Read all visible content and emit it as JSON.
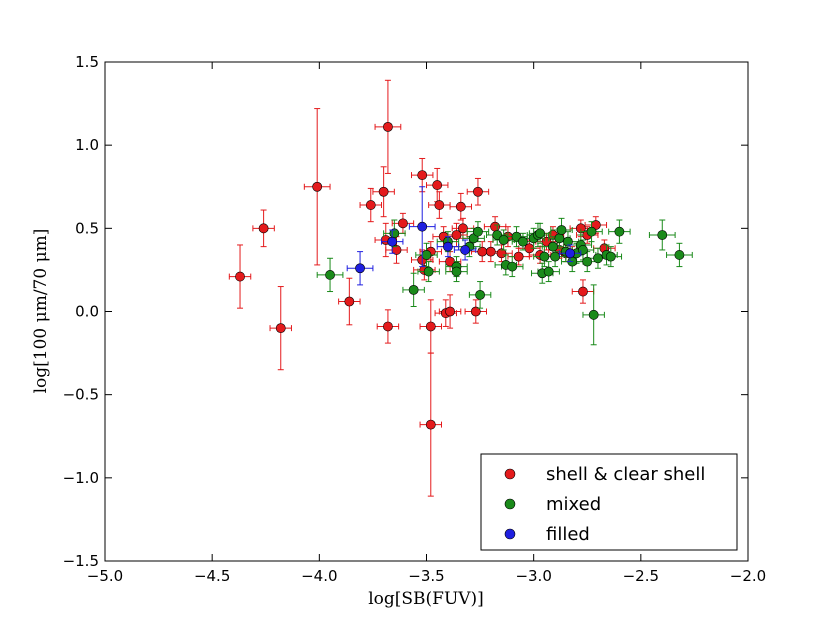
{
  "chart_data": {
    "type": "scatter",
    "title": "",
    "xlabel": "log[SB(FUV)]",
    "ylabel": "log[100 μm/70 μm]",
    "xlim": [
      -5.0,
      -2.0
    ],
    "ylim": [
      -1.5,
      1.5
    ],
    "xticks": [
      -5.0,
      -4.5,
      -4.0,
      -3.5,
      -3.0,
      -2.5,
      -2.0
    ],
    "yticks": [
      -1.5,
      -1.0,
      -0.5,
      0.0,
      0.5,
      1.0,
      1.5
    ],
    "xtick_labels": [
      "−5.0",
      "−4.5",
      "−4.0",
      "−3.5",
      "−3.0",
      "−2.5",
      "−2.0"
    ],
    "ytick_labels": [
      "−1.5",
      "−1.0",
      "−0.5",
      "0.0",
      "0.5",
      "1.0",
      "1.5"
    ],
    "grid": false,
    "legend_position": "bottom-right",
    "series": [
      {
        "name": "shell & clear shell",
        "color": "#e41a1c",
        "points": [
          {
            "x": -4.37,
            "y": 0.21,
            "xerr": 0.05,
            "yerr": 0.19
          },
          {
            "x": -4.26,
            "y": 0.5,
            "xerr": 0.05,
            "yerr": 0.11
          },
          {
            "x": -4.18,
            "y": -0.1,
            "xerr": 0.05,
            "yerr": 0.25
          },
          {
            "x": -4.01,
            "y": 0.75,
            "xerr": 0.06,
            "yerr": 0.47
          },
          {
            "x": -3.86,
            "y": 0.06,
            "xerr": 0.05,
            "yerr": 0.14
          },
          {
            "x": -3.76,
            "y": 0.64,
            "xerr": 0.05,
            "yerr": 0.1
          },
          {
            "x": -3.7,
            "y": 0.72,
            "xerr": 0.05,
            "yerr": 0.15
          },
          {
            "x": -3.68,
            "y": 1.11,
            "xerr": 0.06,
            "yerr": 0.28
          },
          {
            "x": -3.68,
            "y": -0.09,
            "xerr": 0.05,
            "yerr": 0.1
          },
          {
            "x": -3.69,
            "y": 0.43,
            "xerr": 0.05,
            "yerr": 0.1
          },
          {
            "x": -3.64,
            "y": 0.37,
            "xerr": 0.05,
            "yerr": 0.08
          },
          {
            "x": -3.61,
            "y": 0.53,
            "xerr": 0.05,
            "yerr": 0.06
          },
          {
            "x": -3.52,
            "y": 0.82,
            "xerr": 0.05,
            "yerr": 0.1
          },
          {
            "x": -3.52,
            "y": 0.31,
            "xerr": 0.05,
            "yerr": 0.06
          },
          {
            "x": -3.51,
            "y": 0.25,
            "xerr": 0.05,
            "yerr": 0.06
          },
          {
            "x": -3.48,
            "y": 0.36,
            "xerr": 0.05,
            "yerr": 0.06
          },
          {
            "x": -3.48,
            "y": -0.68,
            "xerr": 0.05,
            "yerr": 0.43
          },
          {
            "x": -3.48,
            "y": -0.09,
            "xerr": 0.05,
            "yerr": 0.16
          },
          {
            "x": -3.45,
            "y": 0.76,
            "xerr": 0.05,
            "yerr": 0.1
          },
          {
            "x": -3.44,
            "y": 0.64,
            "xerr": 0.05,
            "yerr": 0.08
          },
          {
            "x": -3.42,
            "y": 0.45,
            "xerr": 0.05,
            "yerr": 0.06
          },
          {
            "x": -3.41,
            "y": -0.01,
            "xerr": 0.05,
            "yerr": 0.08
          },
          {
            "x": -3.39,
            "y": 0.0,
            "xerr": 0.05,
            "yerr": 0.1
          },
          {
            "x": -3.39,
            "y": 0.3,
            "xerr": 0.05,
            "yerr": 0.06
          },
          {
            "x": -3.36,
            "y": 0.46,
            "xerr": 0.05,
            "yerr": 0.07
          },
          {
            "x": -3.34,
            "y": 0.63,
            "xerr": 0.05,
            "yerr": 0.08
          },
          {
            "x": -3.33,
            "y": 0.5,
            "xerr": 0.05,
            "yerr": 0.06
          },
          {
            "x": -3.27,
            "y": 0.0,
            "xerr": 0.05,
            "yerr": 0.07
          },
          {
            "x": -3.26,
            "y": 0.72,
            "xerr": 0.05,
            "yerr": 0.08
          },
          {
            "x": -3.24,
            "y": 0.36,
            "xerr": 0.05,
            "yerr": 0.06
          },
          {
            "x": -3.2,
            "y": 0.36,
            "xerr": 0.05,
            "yerr": 0.06
          },
          {
            "x": -3.18,
            "y": 0.51,
            "xerr": 0.05,
            "yerr": 0.06
          },
          {
            "x": -3.15,
            "y": 0.35,
            "xerr": 0.05,
            "yerr": 0.05
          },
          {
            "x": -3.12,
            "y": 0.45,
            "xerr": 0.05,
            "yerr": 0.06
          },
          {
            "x": -3.07,
            "y": 0.33,
            "xerr": 0.05,
            "yerr": 0.05
          },
          {
            "x": -3.02,
            "y": 0.38,
            "xerr": 0.05,
            "yerr": 0.05
          },
          {
            "x": -2.97,
            "y": 0.34,
            "xerr": 0.05,
            "yerr": 0.05
          },
          {
            "x": -2.94,
            "y": 0.42,
            "xerr": 0.05,
            "yerr": 0.05
          },
          {
            "x": -2.91,
            "y": 0.46,
            "xerr": 0.05,
            "yerr": 0.05
          },
          {
            "x": -2.88,
            "y": 0.37,
            "xerr": 0.05,
            "yerr": 0.05
          },
          {
            "x": -2.85,
            "y": 0.35,
            "xerr": 0.05,
            "yerr": 0.05
          },
          {
            "x": -2.82,
            "y": 0.34,
            "xerr": 0.05,
            "yerr": 0.05
          },
          {
            "x": -2.78,
            "y": 0.5,
            "xerr": 0.05,
            "yerr": 0.05
          },
          {
            "x": -2.77,
            "y": 0.12,
            "xerr": 0.05,
            "yerr": 0.07
          },
          {
            "x": -2.75,
            "y": 0.46,
            "xerr": 0.05,
            "yerr": 0.05
          },
          {
            "x": -2.71,
            "y": 0.52,
            "xerr": 0.05,
            "yerr": 0.05
          },
          {
            "x": -2.67,
            "y": 0.38,
            "xerr": 0.05,
            "yerr": 0.05
          }
        ]
      },
      {
        "name": "mixed",
        "color": "#1a8a1a",
        "points": [
          {
            "x": -3.95,
            "y": 0.22,
            "xerr": 0.06,
            "yerr": 0.1
          },
          {
            "x": -3.65,
            "y": 0.47,
            "xerr": 0.05,
            "yerr": 0.08
          },
          {
            "x": -3.56,
            "y": 0.13,
            "xerr": 0.05,
            "yerr": 0.1
          },
          {
            "x": -3.5,
            "y": 0.34,
            "xerr": 0.05,
            "yerr": 0.07
          },
          {
            "x": -3.49,
            "y": 0.24,
            "xerr": 0.05,
            "yerr": 0.06
          },
          {
            "x": -3.4,
            "y": 0.42,
            "xerr": 0.05,
            "yerr": 0.06
          },
          {
            "x": -3.36,
            "y": 0.27,
            "xerr": 0.05,
            "yerr": 0.06
          },
          {
            "x": -3.36,
            "y": 0.24,
            "xerr": 0.05,
            "yerr": 0.06
          },
          {
            "x": -3.3,
            "y": 0.39,
            "xerr": 0.05,
            "yerr": 0.06
          },
          {
            "x": -3.28,
            "y": 0.44,
            "xerr": 0.05,
            "yerr": 0.06
          },
          {
            "x": -3.26,
            "y": 0.48,
            "xerr": 0.05,
            "yerr": 0.06
          },
          {
            "x": -3.25,
            "y": 0.1,
            "xerr": 0.05,
            "yerr": 0.08
          },
          {
            "x": -3.17,
            "y": 0.46,
            "xerr": 0.05,
            "yerr": 0.06
          },
          {
            "x": -3.14,
            "y": 0.43,
            "xerr": 0.05,
            "yerr": 0.06
          },
          {
            "x": -3.13,
            "y": 0.28,
            "xerr": 0.05,
            "yerr": 0.06
          },
          {
            "x": -3.1,
            "y": 0.27,
            "xerr": 0.05,
            "yerr": 0.06
          },
          {
            "x": -3.08,
            "y": 0.45,
            "xerr": 0.05,
            "yerr": 0.06
          },
          {
            "x": -3.05,
            "y": 0.42,
            "xerr": 0.05,
            "yerr": 0.05
          },
          {
            "x": -3.0,
            "y": 0.44,
            "xerr": 0.05,
            "yerr": 0.06
          },
          {
            "x": -2.98,
            "y": 0.46,
            "xerr": 0.05,
            "yerr": 0.07
          },
          {
            "x": -2.97,
            "y": 0.47,
            "xerr": 0.05,
            "yerr": 0.06
          },
          {
            "x": -2.96,
            "y": 0.23,
            "xerr": 0.05,
            "yerr": 0.06
          },
          {
            "x": -2.95,
            "y": 0.33,
            "xerr": 0.05,
            "yerr": 0.06
          },
          {
            "x": -2.93,
            "y": 0.24,
            "xerr": 0.05,
            "yerr": 0.06
          },
          {
            "x": -2.91,
            "y": 0.39,
            "xerr": 0.05,
            "yerr": 0.06
          },
          {
            "x": -2.9,
            "y": 0.33,
            "xerr": 0.05,
            "yerr": 0.06
          },
          {
            "x": -2.88,
            "y": 0.44,
            "xerr": 0.05,
            "yerr": 0.06
          },
          {
            "x": -2.87,
            "y": 0.49,
            "xerr": 0.05,
            "yerr": 0.07
          },
          {
            "x": -2.85,
            "y": 0.36,
            "xerr": 0.05,
            "yerr": 0.06
          },
          {
            "x": -2.84,
            "y": 0.42,
            "xerr": 0.05,
            "yerr": 0.06
          },
          {
            "x": -2.82,
            "y": 0.3,
            "xerr": 0.05,
            "yerr": 0.06
          },
          {
            "x": -2.8,
            "y": 0.35,
            "xerr": 0.05,
            "yerr": 0.06
          },
          {
            "x": -2.78,
            "y": 0.4,
            "xerr": 0.05,
            "yerr": 0.06
          },
          {
            "x": -2.77,
            "y": 0.37,
            "xerr": 0.05,
            "yerr": 0.06
          },
          {
            "x": -2.75,
            "y": 0.3,
            "xerr": 0.05,
            "yerr": 0.06
          },
          {
            "x": -2.73,
            "y": 0.48,
            "xerr": 0.05,
            "yerr": 0.06
          },
          {
            "x": -2.72,
            "y": -0.02,
            "xerr": 0.05,
            "yerr": 0.18
          },
          {
            "x": -2.7,
            "y": 0.32,
            "xerr": 0.05,
            "yerr": 0.06
          },
          {
            "x": -2.66,
            "y": 0.34,
            "xerr": 0.05,
            "yerr": 0.06
          },
          {
            "x": -2.64,
            "y": 0.33,
            "xerr": 0.05,
            "yerr": 0.06
          },
          {
            "x": -2.6,
            "y": 0.48,
            "xerr": 0.05,
            "yerr": 0.07
          },
          {
            "x": -2.4,
            "y": 0.46,
            "xerr": 0.06,
            "yerr": 0.09
          },
          {
            "x": -2.32,
            "y": 0.34,
            "xerr": 0.06,
            "yerr": 0.07
          }
        ]
      },
      {
        "name": "filled",
        "color": "#1f1fe0",
        "points": [
          {
            "x": -3.81,
            "y": 0.26,
            "xerr": 0.06,
            "yerr": 0.1
          },
          {
            "x": -3.66,
            "y": 0.42,
            "xerr": 0.05,
            "yerr": 0.07
          },
          {
            "x": -3.52,
            "y": 0.51,
            "xerr": 0.06,
            "yerr": 0.24
          },
          {
            "x": -3.4,
            "y": 0.39,
            "xerr": 0.05,
            "yerr": 0.06
          },
          {
            "x": -3.32,
            "y": 0.37,
            "xerr": 0.05,
            "yerr": 0.06
          },
          {
            "x": -2.83,
            "y": 0.35,
            "xerr": 0.05,
            "yerr": 0.05
          }
        ]
      }
    ]
  }
}
